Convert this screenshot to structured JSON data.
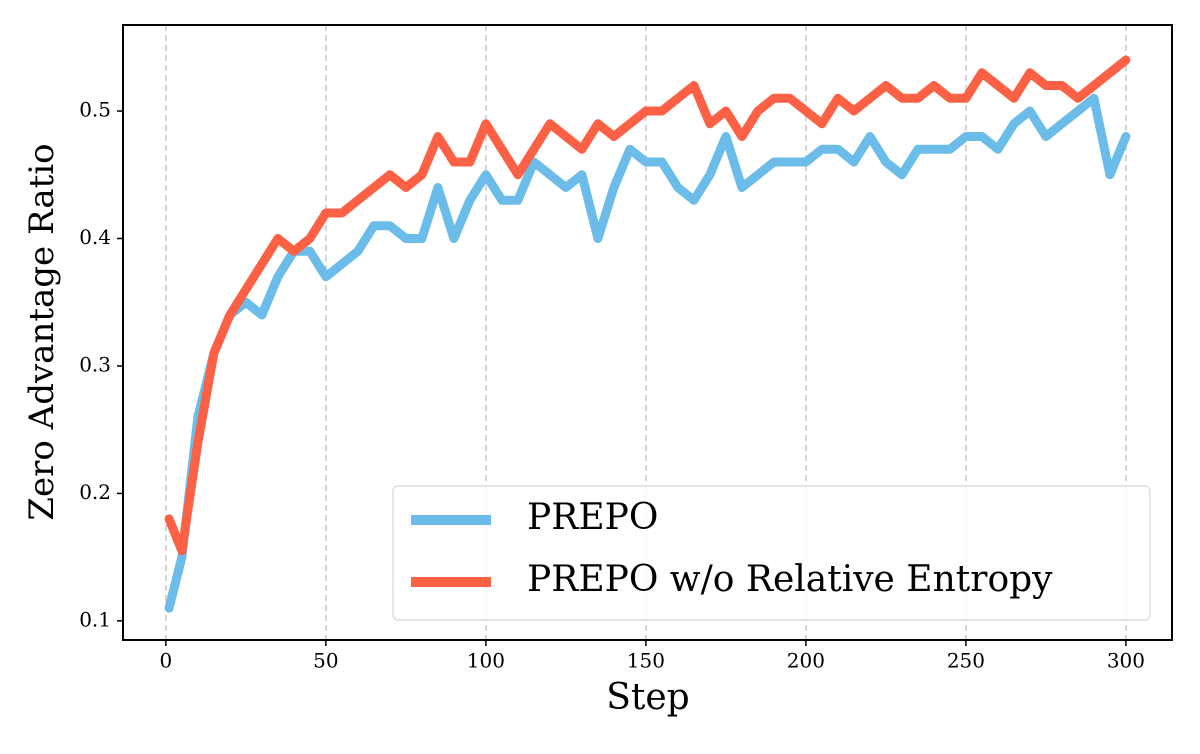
{
  "chart_data": {
    "type": "line",
    "xlabel": "Step",
    "ylabel": "Zero Advantage Ratio",
    "x": [
      1,
      5,
      10,
      15,
      20,
      25,
      30,
      35,
      40,
      45,
      50,
      55,
      60,
      65,
      70,
      75,
      80,
      85,
      90,
      95,
      100,
      105,
      110,
      115,
      120,
      125,
      130,
      135,
      140,
      145,
      150,
      155,
      160,
      165,
      170,
      175,
      180,
      185,
      190,
      195,
      200,
      205,
      210,
      215,
      220,
      225,
      230,
      235,
      240,
      245,
      250,
      255,
      260,
      265,
      270,
      275,
      280,
      285,
      290,
      295,
      300
    ],
    "series": [
      {
        "name": "PREPO",
        "color": "#6bbce8",
        "values": [
          0.11,
          0.15,
          0.26,
          0.31,
          0.34,
          0.35,
          0.34,
          0.37,
          0.39,
          0.39,
          0.37,
          0.38,
          0.39,
          0.41,
          0.41,
          0.4,
          0.4,
          0.44,
          0.4,
          0.43,
          0.45,
          0.43,
          0.43,
          0.46,
          0.45,
          0.44,
          0.45,
          0.4,
          0.44,
          0.47,
          0.46,
          0.46,
          0.44,
          0.43,
          0.45,
          0.48,
          0.44,
          0.45,
          0.46,
          0.46,
          0.46,
          0.47,
          0.47,
          0.46,
          0.48,
          0.46,
          0.45,
          0.47,
          0.47,
          0.47,
          0.48,
          0.48,
          0.47,
          0.49,
          0.5,
          0.48,
          0.49,
          0.5,
          0.51,
          0.45,
          0.48
        ]
      },
      {
        "name": "PREPO w/o Relative Entropy",
        "color": "#fd6145",
        "values": [
          0.18,
          0.155,
          0.24,
          0.31,
          0.34,
          0.36,
          0.38,
          0.4,
          0.39,
          0.4,
          0.42,
          0.42,
          0.43,
          0.44,
          0.45,
          0.44,
          0.45,
          0.48,
          0.46,
          0.46,
          0.49,
          0.47,
          0.45,
          0.47,
          0.49,
          0.48,
          0.47,
          0.49,
          0.48,
          0.49,
          0.5,
          0.5,
          0.51,
          0.52,
          0.49,
          0.5,
          0.48,
          0.5,
          0.51,
          0.51,
          0.5,
          0.49,
          0.51,
          0.5,
          0.51,
          0.52,
          0.51,
          0.51,
          0.52,
          0.51,
          0.51,
          0.53,
          0.52,
          0.51,
          0.53,
          0.52,
          0.52,
          0.51,
          0.52,
          0.53,
          0.54
        ]
      }
    ],
    "xlim": [
      -13.4,
      314.4
    ],
    "xticks": [
      0,
      50,
      100,
      150,
      200,
      250,
      300
    ],
    "ylim": [
      0.085,
      0.5675
    ],
    "yticks": [
      0.1,
      0.2,
      0.3,
      0.4,
      0.5
    ],
    "grid": "x",
    "legend": "lower right"
  }
}
